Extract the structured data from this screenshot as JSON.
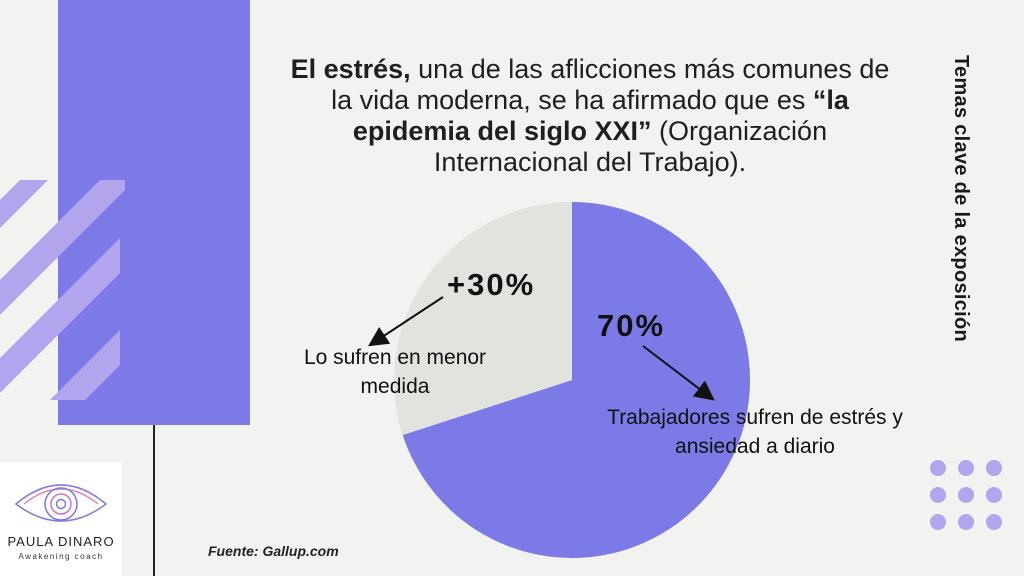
{
  "headline": {
    "part1_bold": "El estrés,",
    "part2": " una de las aflicciones más comunes de la vida moderna, se ha afirmado que es ",
    "part3_bold": "“la epidemia del siglo XXI”",
    "part4": " (Organización Internacional del Trabajo)."
  },
  "side_title": "Temas clave de la exposición",
  "chart_data": {
    "type": "pie",
    "slices": [
      {
        "label": "70%",
        "value": 70,
        "description": "Trabajadores sufren de estrés y ansiedad a diario",
        "color": "#7b7ae6"
      },
      {
        "label": "+30%",
        "value": 30,
        "description": "Lo sufren en menor medida",
        "color": "#e1e3df"
      }
    ]
  },
  "source": "Fuente: Gallup.com",
  "logo": {
    "name": "PAULA DINARO",
    "tagline": "Awakening coach"
  },
  "colors": {
    "accent": "#7b7ae6",
    "stripe": "#b3a4ee",
    "background": "#f2f2f0"
  }
}
